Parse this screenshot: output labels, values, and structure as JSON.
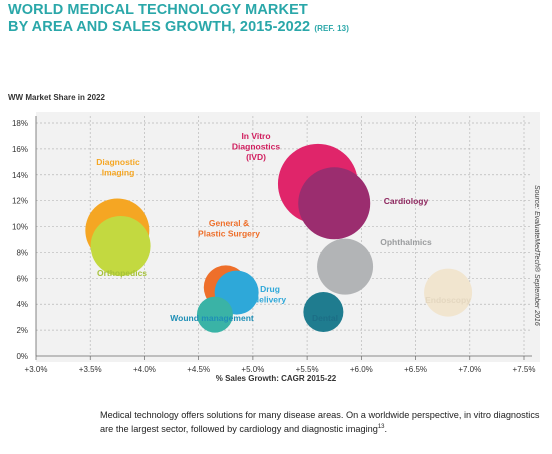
{
  "title": {
    "line1": "WORLD MEDICAL TECHNOLOGY MARKET",
    "line2": "BY AREA AND SALES GROWTH, 2015-2022",
    "ref": "(REF. 13)"
  },
  "source": "Source: EvaluateMedTech® September 2016",
  "caption": {
    "text": "Medical technology offers solutions for many disease areas. On a worldwide perspective, in vitro diagnostics are the largest sector, followed by cardiology and diagnostic imaging",
    "footnote": "13",
    "end": "."
  },
  "chart_data": {
    "type": "scatter",
    "bubble": true,
    "ylabel": "WW Market Share in 2022",
    "xlabel": "% Sales Growth: CAGR 2015-22",
    "xlim": [
      3.0,
      7.5
    ],
    "ylim": [
      0,
      18
    ],
    "xticks": [
      "+3.0%",
      "+3.5%",
      "+4.0%",
      "+4.5%",
      "+5.0%",
      "+5.5%",
      "+6.0%",
      "+6.5%",
      "+7.0%",
      "+7.5%"
    ],
    "yticks": [
      "0%",
      "2%",
      "4%",
      "6%",
      "8%",
      "10%",
      "12%",
      "14%",
      "16%",
      "18%"
    ],
    "grid": "dashed",
    "points": [
      {
        "label": "Diagnostic Imaging",
        "x": 3.75,
        "y": 9.7,
        "size": 32,
        "color": "#f5a623",
        "label_color": "#f5a623"
      },
      {
        "label": "Orthopedics",
        "x": 3.78,
        "y": 8.5,
        "size": 30,
        "color": "#c3d940",
        "label_color": "#a6c23a"
      },
      {
        "label": "General & Plastic Surgery",
        "x": 4.75,
        "y": 5.3,
        "size": 22,
        "color": "#ee6f2a",
        "label_color": "#ee6f2a"
      },
      {
        "label": "Drug delivery",
        "x": 4.85,
        "y": 4.9,
        "size": 22,
        "color": "#2ea8d9",
        "label_color": "#2ea8d9"
      },
      {
        "label": "Wound management",
        "x": 4.65,
        "y": 3.2,
        "size": 18,
        "color": "#3ab3a6",
        "label_color": "#1f8fb6"
      },
      {
        "label": "In Vitro Diagnostics (IVD)",
        "x": 5.6,
        "y": 13.3,
        "size": 40,
        "color": "#e0256a",
        "label_color": "#d01e5e"
      },
      {
        "label": "Cardiology",
        "x": 5.75,
        "y": 11.8,
        "size": 36,
        "color": "#9b2d6f",
        "label_color": "#8e275f"
      },
      {
        "label": "Ophthalmics",
        "x": 5.85,
        "y": 6.9,
        "size": 28,
        "color": "#b2b4b6",
        "label_color": "#9a9c9e"
      },
      {
        "label": "Dental",
        "x": 5.65,
        "y": 3.4,
        "size": 20,
        "color": "#1f7c8f",
        "label_color": "#1c6e86"
      },
      {
        "label": "Endoscopy",
        "x": 6.8,
        "y": 4.9,
        "size": 24,
        "color": "#f1e5cf",
        "label_color": "#e4d7c0"
      }
    ]
  }
}
